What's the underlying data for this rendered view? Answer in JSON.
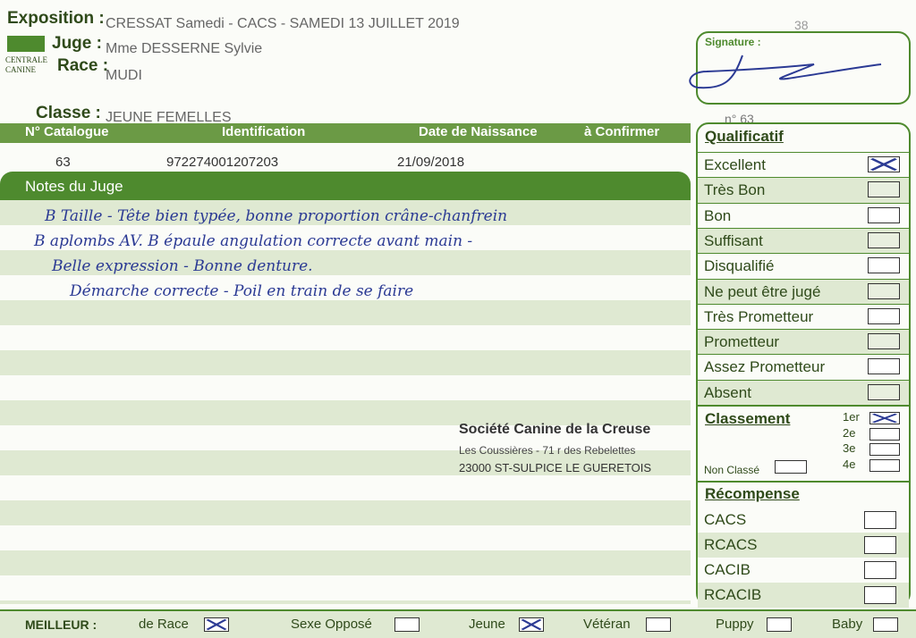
{
  "header": {
    "exposition_label": "Exposition :",
    "exposition": "CRESSAT Samedi - CACS -  SAMEDI 13 JUILLET 2019",
    "page_number": "38",
    "juge_label": "Juge :",
    "juge": "Mme DESSERNE Sylvie",
    "race_label": "Race :",
    "race": "MUDI",
    "logo_top": "CENTRALE",
    "logo_bottom": "CANINE",
    "signature_label": "Signature :"
  },
  "classe": {
    "label": "Classe :",
    "value": "JEUNE FEMELLES",
    "number": "n° 63"
  },
  "table": {
    "headers": [
      "N° Catalogue",
      "Identification",
      "Date de Naissance",
      "à Confirmer"
    ],
    "row": [
      "63",
      "972274001207203",
      "21/09/2018"
    ]
  },
  "notes": {
    "title": "Notes du Juge",
    "lines": [
      "B Taille - Tête bien typée, bonne proportion crâne-chanfrein",
      "B aplombs AV. B épaule angulation correcte avant main -",
      "Belle expression - Bonne denture.",
      "Démarche correcte - Poil en train de se faire"
    ]
  },
  "societe": {
    "name": "Société Canine de la Creuse",
    "address": "Les Coussières - 71 r des Rebelettes",
    "city": "23000 ST-SULPICE LE GUERETOIS"
  },
  "qualificatif": {
    "title": "Qualificatif",
    "items": [
      {
        "label": "Excellent",
        "checked": true
      },
      {
        "label": "Très Bon",
        "checked": false
      },
      {
        "label": "Bon",
        "checked": false
      },
      {
        "label": "Suffisant",
        "checked": false
      },
      {
        "label": "Disqualifié",
        "checked": false
      },
      {
        "label": "Ne peut être jugé",
        "checked": false
      },
      {
        "label": "Très Prometteur",
        "checked": false
      },
      {
        "label": "Prometteur",
        "checked": false
      },
      {
        "label": "Assez Prometteur",
        "checked": false
      },
      {
        "label": "Absent",
        "checked": false
      }
    ]
  },
  "classement": {
    "title": "Classement",
    "ranks": [
      {
        "label": "1er",
        "checked": true
      },
      {
        "label": "2e",
        "checked": false
      },
      {
        "label": "3e",
        "checked": false
      },
      {
        "label": "4e",
        "checked": false
      }
    ],
    "non_classe": {
      "label": "Non Classé",
      "checked": false
    }
  },
  "recompense": {
    "title": "Récompense",
    "items": [
      {
        "label": "CACS",
        "checked": false
      },
      {
        "label": "RCACS",
        "checked": false
      },
      {
        "label": "CACIB",
        "checked": false
      },
      {
        "label": "RCACIB",
        "checked": false
      }
    ]
  },
  "meilleur": {
    "label": "MEILLEUR :",
    "items": [
      {
        "label": "de Race",
        "checked": true
      },
      {
        "label": "Sexe Opposé",
        "checked": false
      },
      {
        "label": "Jeune",
        "checked": true
      },
      {
        "label": "Vétéran",
        "checked": false
      },
      {
        "label": "Puppy",
        "checked": false
      },
      {
        "label": "Baby",
        "checked": false
      }
    ]
  }
}
